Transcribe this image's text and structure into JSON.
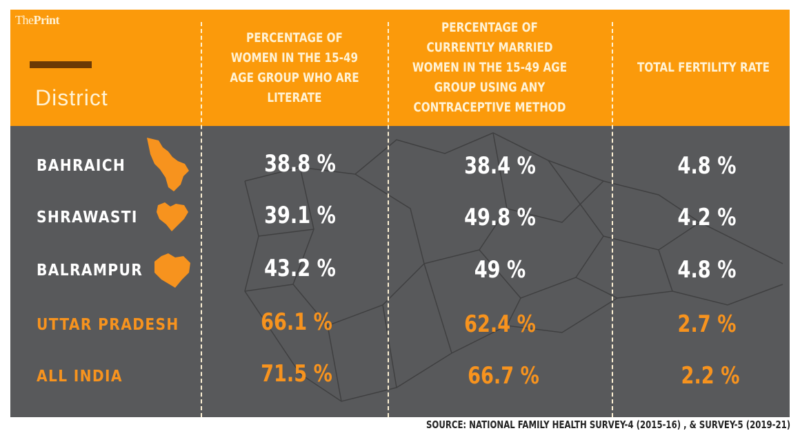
{
  "brand": {
    "logo_text": "ThePrint",
    "logo_part1": "The",
    "logo_part2": "Print"
  },
  "colors": {
    "header": "#fb9a0b",
    "body": "#58595b",
    "highlight": "#f7931e",
    "header_text": "#fff3d6"
  },
  "chart_data": {
    "type": "table",
    "columns": [
      "District",
      "PERCENTAGE OF WOMEN IN THE 15-49 AGE GROUP WHO ARE LITERATE",
      "PERCENTAGE OF CURRENTLY MARRIED WOMEN IN THE 15-49 AGE GROUP USING ANY CONTRACEPTIVE METHOD",
      "TOTAL FERTILITY RATE"
    ],
    "rows": [
      {
        "district": "BAHRAICH",
        "literate": "38.8 %",
        "contraceptive": "38.4 %",
        "tfr": "4.8 %",
        "highlight": false
      },
      {
        "district": "SHRAWASTI",
        "literate": "39.1 %",
        "contraceptive": "49.8 %",
        "tfr": "4.2 %",
        "highlight": false
      },
      {
        "district": "BALRAMPUR",
        "literate": "43.2 %",
        "contraceptive": "49 %",
        "tfr": "4.8 %",
        "highlight": false
      },
      {
        "district": "UTTAR PRADESH",
        "literate": "66.1 %",
        "contraceptive": "62.4 %",
        "tfr": "2.7 %",
        "highlight": true
      },
      {
        "district": "ALL INDIA",
        "literate": "71.5 %",
        "contraceptive": "66.7 %",
        "tfr": "2.2 %",
        "highlight": true
      }
    ]
  },
  "source": "SOURCE: NATIONAL FAMILY HEALTH SURVEY-4 (2015-16) , & SURVEY-5 (2019-21)"
}
